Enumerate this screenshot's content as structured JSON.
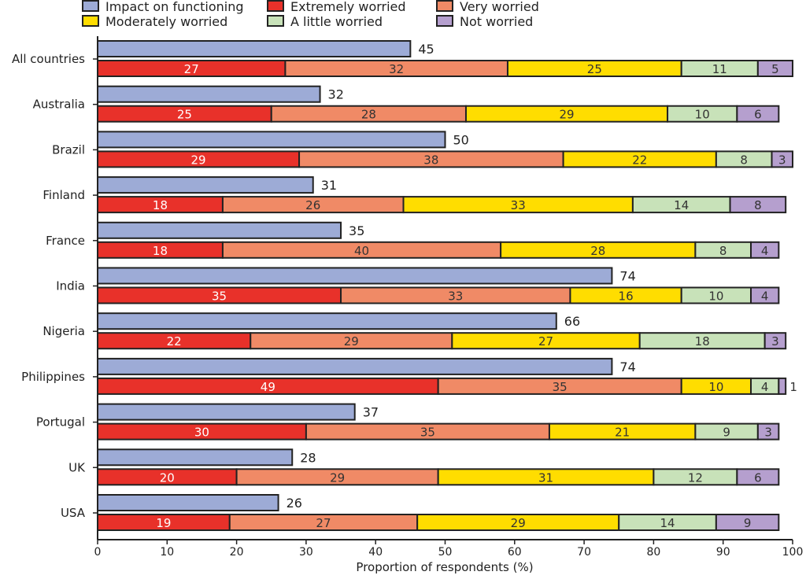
{
  "chart_data": {
    "type": "bar",
    "orientation": "horizontal",
    "stacked_series_group": "worry",
    "xlabel": "Proportion of respondents (%)",
    "xlim": [
      0,
      100
    ],
    "xticks": [
      0,
      10,
      20,
      30,
      40,
      50,
      60,
      70,
      80,
      90,
      100
    ],
    "grid": false,
    "legend_position": "top",
    "categories": [
      "All countries",
      "Australia",
      "Brazil",
      "Finland",
      "France",
      "India",
      "Nigeria",
      "Philippines",
      "Portugal",
      "UK",
      "USA"
    ],
    "impact": {
      "name": "Impact on functioning",
      "color": "#9dabd6",
      "values": [
        45,
        32,
        50,
        31,
        35,
        74,
        66,
        74,
        37,
        28,
        26
      ]
    },
    "series": [
      {
        "name": "Extremely worried",
        "color": "#e8312a",
        "values": [
          27,
          25,
          29,
          18,
          18,
          35,
          22,
          49,
          30,
          20,
          19
        ]
      },
      {
        "name": "Very worried",
        "color": "#f08a66",
        "values": [
          32,
          28,
          38,
          26,
          40,
          33,
          29,
          35,
          35,
          29,
          27
        ]
      },
      {
        "name": "Moderately worried",
        "color": "#ffdd00",
        "values": [
          25,
          29,
          22,
          33,
          28,
          16,
          27,
          10,
          21,
          31,
          29
        ]
      },
      {
        "name": "A little worried",
        "color": "#c8e2b9",
        "values": [
          11,
          10,
          8,
          14,
          8,
          10,
          18,
          4,
          9,
          12,
          14
        ]
      },
      {
        "name": "Not worried",
        "color": "#b59fce",
        "values": [
          5,
          6,
          3,
          8,
          4,
          4,
          3,
          1,
          3,
          6,
          9
        ]
      }
    ]
  }
}
